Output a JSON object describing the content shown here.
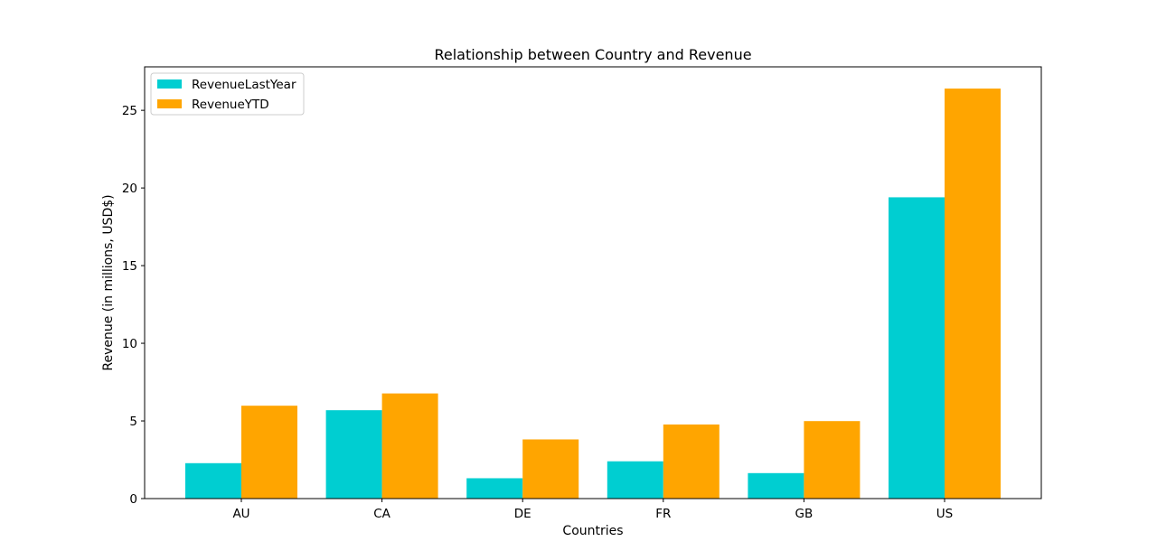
{
  "chart_data": {
    "type": "bar",
    "title": "Relationship between Country and Revenue",
    "xlabel": "Countries",
    "ylabel": "Revenue (in millions, USD$)",
    "categories": [
      "AU",
      "CA",
      "DE",
      "FR",
      "GB",
      "US"
    ],
    "series": [
      {
        "name": "RevenueLastYear",
        "color": "#00CED1",
        "values": [
          2.28,
          5.69,
          1.31,
          2.4,
          1.64,
          19.4
        ]
      },
      {
        "name": "RevenueYTD",
        "color": "#FFA500",
        "values": [
          5.98,
          6.77,
          3.81,
          4.77,
          4.99,
          26.4
        ]
      }
    ],
    "ylim": [
      0,
      27.8
    ],
    "yticks": [
      0,
      5,
      10,
      15,
      20,
      25
    ],
    "grid": false,
    "legend_position": "top-left"
  }
}
